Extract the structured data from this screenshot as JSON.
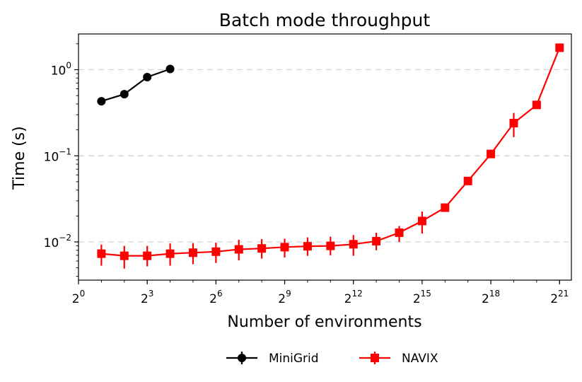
{
  "chart_data": {
    "type": "line",
    "title": "Batch mode throughput",
    "xlabel": "Number of environments",
    "ylabel": "Time (s)",
    "x_scale": "log2",
    "y_scale": "log10",
    "xlim": [
      1,
      3000000
    ],
    "ylim": [
      0.0036,
      2.6
    ],
    "x_ticks": [
      {
        "value": 1,
        "base": "2",
        "exp": "0"
      },
      {
        "value": 8,
        "base": "2",
        "exp": "3"
      },
      {
        "value": 64,
        "base": "2",
        "exp": "6"
      },
      {
        "value": 512,
        "base": "2",
        "exp": "9"
      },
      {
        "value": 4096,
        "base": "2",
        "exp": "12"
      },
      {
        "value": 32768,
        "base": "2",
        "exp": "15"
      },
      {
        "value": 262144,
        "base": "2",
        "exp": "18"
      },
      {
        "value": 2097152,
        "base": "2",
        "exp": "21"
      }
    ],
    "y_ticks": [
      {
        "value": 0.01,
        "base": "10",
        "exp": "−2"
      },
      {
        "value": 0.1,
        "base": "10",
        "exp": "−1"
      },
      {
        "value": 1,
        "base": "10",
        "exp": "0"
      }
    ],
    "grid": {
      "y_major": true,
      "style": "dashed",
      "color": "#d3d3d3"
    },
    "legend": {
      "position": "bottom-center, below plot",
      "columns": 2
    },
    "series": [
      {
        "name": "MiniGrid",
        "color": "#000000",
        "marker": "circle",
        "x": [
          2,
          4,
          8,
          16
        ],
        "y": [
          0.43,
          0.52,
          0.82,
          1.02
        ],
        "err_low": [
          0.43,
          0.52,
          0.82,
          1.02
        ],
        "err_high": [
          0.43,
          0.52,
          0.82,
          1.02
        ]
      },
      {
        "name": "NAVIX",
        "color": "#ff0000",
        "marker": "square",
        "x": [
          2,
          4,
          8,
          16,
          32,
          64,
          128,
          256,
          512,
          1024,
          2048,
          4096,
          8192,
          16384,
          32768,
          65536,
          131072,
          262144,
          524288,
          1048576,
          2097152
        ],
        "y": [
          0.0073,
          0.0069,
          0.0069,
          0.0073,
          0.0075,
          0.0077,
          0.0082,
          0.0084,
          0.0087,
          0.0089,
          0.009,
          0.0094,
          0.0102,
          0.0128,
          0.0175,
          0.025,
          0.051,
          0.105,
          0.24,
          0.39,
          1.8
        ],
        "err_low": [
          0.0053,
          0.0049,
          0.0052,
          0.0053,
          0.0055,
          0.0057,
          0.0061,
          0.0064,
          0.0066,
          0.0069,
          0.007,
          0.0069,
          0.008,
          0.01,
          0.0125,
          0.024,
          0.046,
          0.095,
          0.165,
          0.37,
          1.75
        ],
        "err_high": [
          0.0093,
          0.009,
          0.009,
          0.0096,
          0.0097,
          0.0098,
          0.0106,
          0.0108,
          0.0109,
          0.0113,
          0.0115,
          0.012,
          0.0128,
          0.0153,
          0.0225,
          0.0262,
          0.057,
          0.118,
          0.315,
          0.42,
          1.85
        ]
      }
    ]
  }
}
